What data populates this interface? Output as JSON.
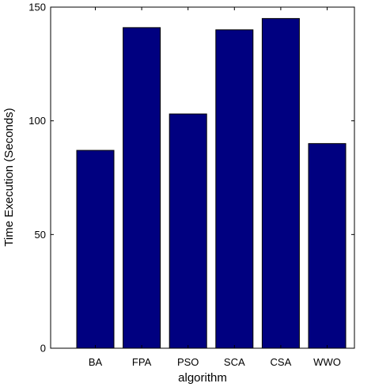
{
  "chart_data": {
    "type": "bar",
    "categories": [
      "BA",
      "FPA",
      "PSO",
      "SCA",
      "CSA",
      "WWO"
    ],
    "values": [
      87,
      141,
      103,
      140,
      145,
      90
    ],
    "xlabel": "algorithm",
    "ylabel": "Time Execution (Seconds)",
    "ylim": [
      0,
      150
    ],
    "yticks": [
      0,
      50,
      100,
      150
    ],
    "grid": false,
    "legend": "none",
    "colors": {
      "bar_fill": "#000080",
      "bar_stroke": "#000000",
      "axis": "#000000"
    }
  }
}
